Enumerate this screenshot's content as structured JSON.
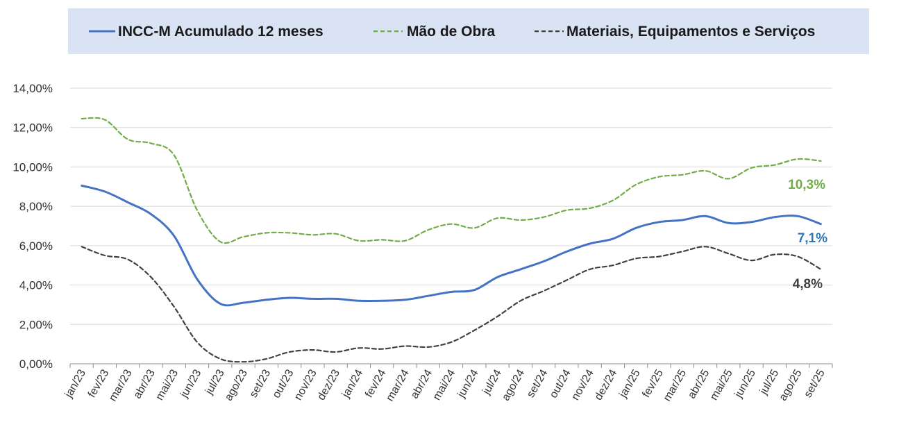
{
  "chart_data": {
    "type": "line",
    "title": "",
    "xlabel": "",
    "ylabel": "",
    "ylim": [
      0,
      14
    ],
    "y_ticks": [
      "0,00%",
      "2,00%",
      "4,00%",
      "6,00%",
      "8,00%",
      "10,00%",
      "12,00%",
      "14,00%"
    ],
    "y_tick_values": [
      0,
      2,
      4,
      6,
      8,
      10,
      12,
      14
    ],
    "grid": true,
    "legend_position": "top",
    "categories": [
      "jan/23",
      "fev/23",
      "mar/23",
      "abr/23",
      "mai/23",
      "jun/23",
      "jul/23",
      "ago/23",
      "set/23",
      "out/23",
      "nov/23",
      "dez/23",
      "jan/24",
      "fev/24",
      "mar/24",
      "abr/24",
      "mai/24",
      "jun/24",
      "jul/24",
      "ago/24",
      "set/24",
      "out/24",
      "nov/24",
      "dez/24",
      "jan/25",
      "fev/25",
      "mar/25",
      "abr/25",
      "mai/25",
      "jun/25",
      "jul/25",
      "ago/25",
      "set/25"
    ],
    "series": [
      {
        "name": "INCC-M Acumulado 12 meses",
        "color": "#4472c4",
        "dash": "solid",
        "values": [
          9.05,
          8.75,
          8.2,
          7.6,
          6.5,
          4.3,
          3.05,
          3.1,
          3.25,
          3.35,
          3.3,
          3.3,
          3.2,
          3.2,
          3.25,
          3.45,
          3.65,
          3.75,
          4.4,
          4.8,
          5.2,
          5.7,
          6.1,
          6.35,
          6.9,
          7.2,
          7.3,
          7.5,
          7.15,
          7.2,
          7.45,
          7.5,
          7.1
        ],
        "end_label": "7,1%"
      },
      {
        "name": "Mão de Obra",
        "color": "#70ad47",
        "dash": "dashed",
        "values": [
          12.45,
          12.4,
          11.4,
          11.2,
          10.6,
          7.8,
          6.2,
          6.45,
          6.65,
          6.65,
          6.55,
          6.6,
          6.25,
          6.3,
          6.25,
          6.8,
          7.1,
          6.9,
          7.4,
          7.3,
          7.45,
          7.8,
          7.9,
          8.3,
          9.1,
          9.5,
          9.6,
          9.8,
          9.4,
          9.95,
          10.1,
          10.4,
          10.3
        ],
        "end_label": "10,3%"
      },
      {
        "name": "Materiais, Equipamentos e Serviços",
        "color": "#404040",
        "dash": "dashed",
        "values": [
          5.95,
          5.5,
          5.3,
          4.4,
          2.9,
          1.1,
          0.25,
          0.1,
          0.25,
          0.6,
          0.7,
          0.6,
          0.8,
          0.75,
          0.9,
          0.85,
          1.1,
          1.7,
          2.4,
          3.2,
          3.7,
          4.25,
          4.8,
          5.0,
          5.35,
          5.45,
          5.7,
          5.95,
          5.6,
          5.25,
          5.55,
          5.45,
          4.8
        ],
        "end_label": "4,8%"
      }
    ]
  }
}
